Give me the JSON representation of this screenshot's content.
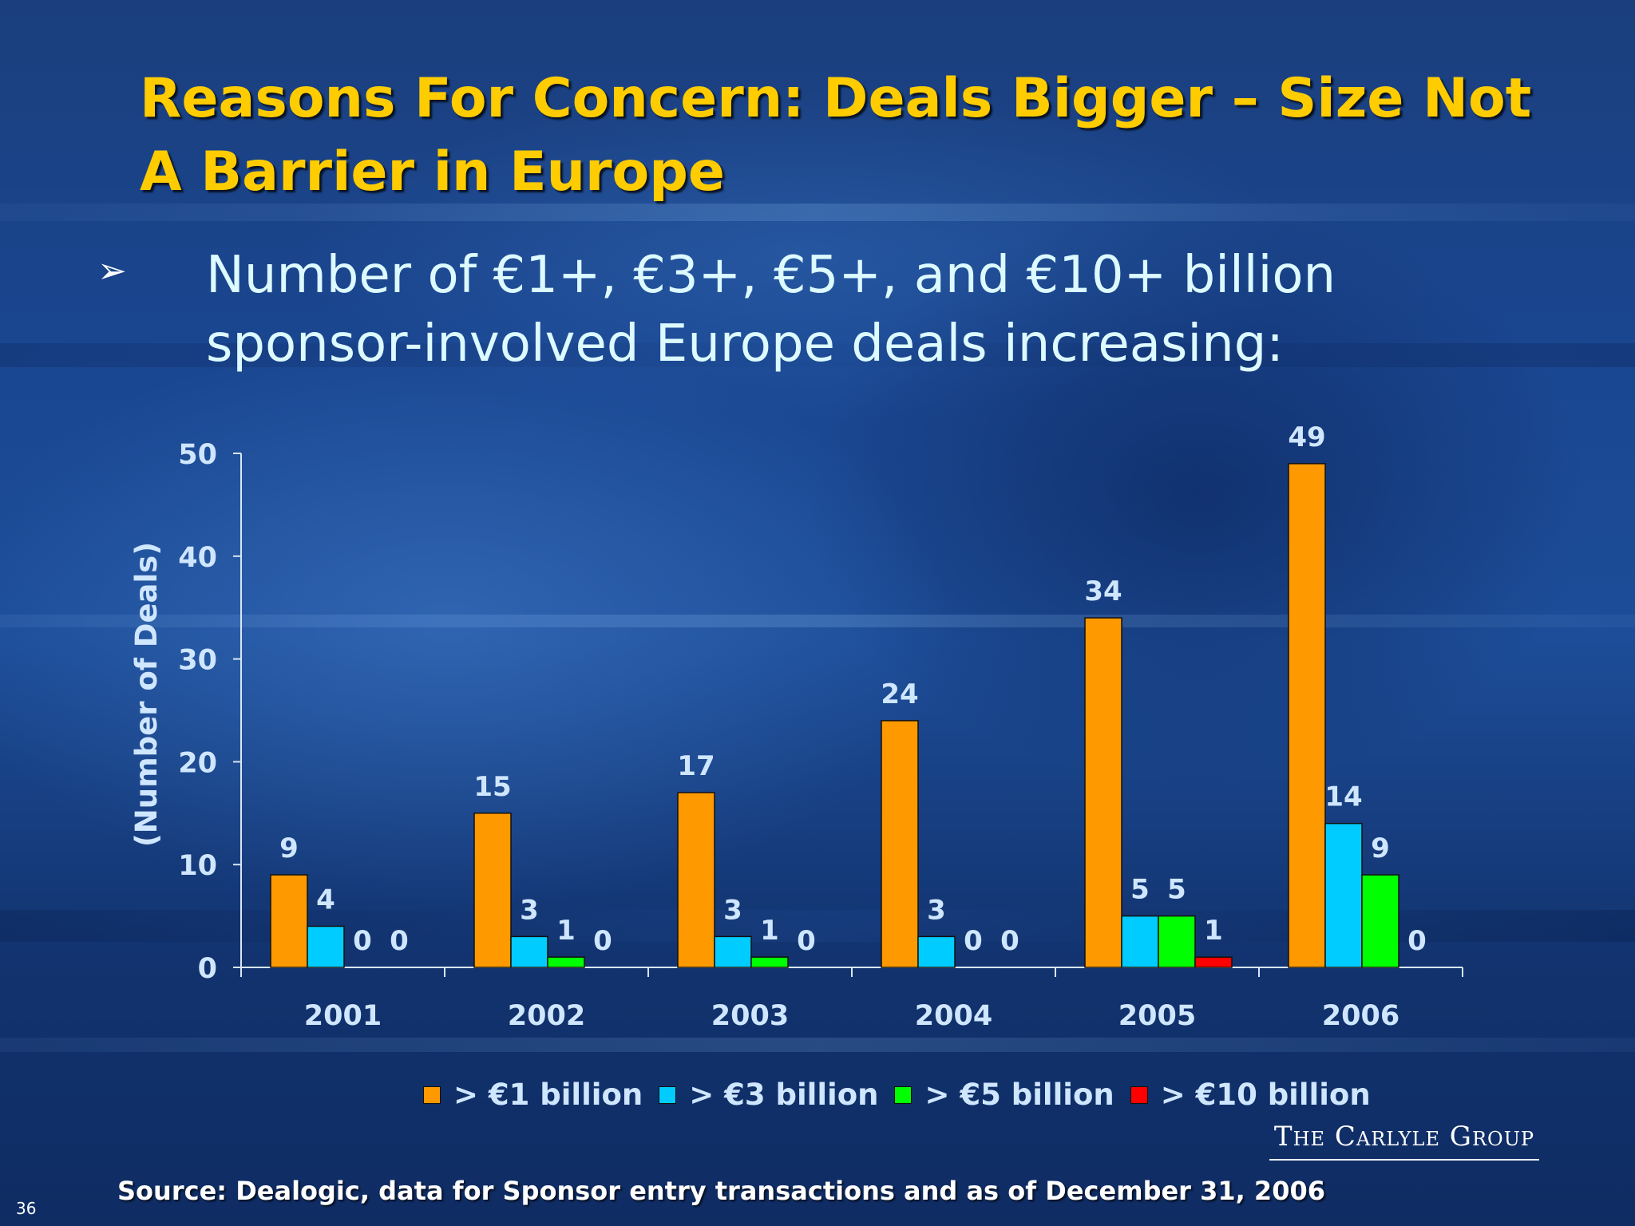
{
  "slide": {
    "title": "Reasons For Concern: Deals Bigger – Size Not A Barrier in Europe",
    "bullet_symbol": "➢",
    "bullet_text": "Number of €1+, €3+, €5+, and €10+ billion sponsor-involved Europe deals increasing:",
    "source": "Source: Dealogic, data for Sponsor entry transactions and as of December 31, 2006",
    "logo_text": "The Carlyle Group",
    "page_number": "36"
  },
  "colors": {
    "title": "#ffcc00",
    "axis_text": "#cfe6ff"
  },
  "chart_data": {
    "type": "bar",
    "title": "",
    "xlabel": "",
    "ylabel": "(Number of Deals)",
    "ylim": [
      0,
      50
    ],
    "yticks": [
      0,
      10,
      20,
      30,
      40,
      50
    ],
    "grid": false,
    "legend_position": "bottom",
    "categories": [
      "2001",
      "2002",
      "2003",
      "2004",
      "2005",
      "2006"
    ],
    "series": [
      {
        "name": "> €1 billion",
        "color": "#ff9900",
        "values": [
          9,
          15,
          17,
          24,
          34,
          49
        ]
      },
      {
        "name": "> €3 billion",
        "color": "#00ccff",
        "values": [
          4,
          3,
          3,
          3,
          5,
          14
        ]
      },
      {
        "name": "> €5 billion",
        "color": "#00ff00",
        "values": [
          0,
          1,
          1,
          0,
          5,
          9
        ]
      },
      {
        "name": "> €10 billion",
        "color": "#ff0000",
        "values": [
          0,
          0,
          0,
          0,
          1,
          0
        ]
      }
    ]
  }
}
